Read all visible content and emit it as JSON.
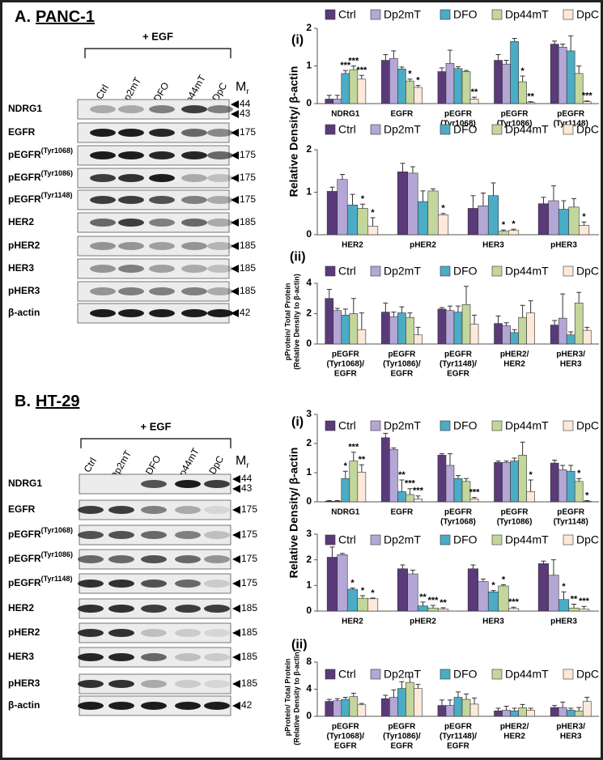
{
  "blots": [
    {
      "panel": "A.",
      "cell_line": "PANC-1",
      "treatment": "+ EGF",
      "lanes": [
        "Ctrl",
        "Dp2mT",
        "DFO",
        "Dp44mT",
        "DpC"
      ],
      "mr": {
        "main": "M",
        "sub": "r"
      },
      "rows": [
        {
          "name": "NDRG1",
          "mr": [
            "44",
            "43"
          ]
        },
        {
          "name": "EGFR",
          "mr": [
            "175"
          ]
        },
        {
          "name": "pEGFR",
          "sup": "(Tyr1068)",
          "mr": [
            "175"
          ]
        },
        {
          "name": "pEGFR",
          "sup": "(Tyr1086)",
          "mr": [
            "175"
          ]
        },
        {
          "name": "pEGFR",
          "sup": "(Tyr1148)",
          "mr": [
            "175"
          ]
        },
        {
          "name": "HER2",
          "mr": [
            "185"
          ]
        },
        {
          "name": "pHER2",
          "mr": [
            "185"
          ]
        },
        {
          "name": "HER3",
          "mr": [
            "185"
          ]
        },
        {
          "name": "pHER3",
          "mr": [
            "185"
          ]
        },
        {
          "name": "β-actin",
          "mr": [
            "42"
          ]
        }
      ]
    },
    {
      "panel": "B.",
      "cell_line": "HT-29",
      "treatment": "+ EGF",
      "lanes": [
        "Ctrl",
        "Dp2mT",
        "DFO",
        "Dp44mT",
        "DpC"
      ],
      "mr": {
        "main": "M",
        "sub": "r"
      },
      "rows": [
        {
          "name": "NDRG1",
          "mr": [
            "44",
            "43"
          ]
        },
        {
          "name": "EGFR",
          "mr": [
            "175"
          ]
        },
        {
          "name": "pEGFR",
          "sup": "(Tyr1068)",
          "mr": [
            "175"
          ]
        },
        {
          "name": "pEGFR",
          "sup": "(Tyr1086)",
          "mr": [
            "175"
          ]
        },
        {
          "name": "pEGFR",
          "sup": "(Tyr1148)",
          "mr": [
            "175"
          ]
        },
        {
          "name": "HER2",
          "mr": [
            "185"
          ]
        },
        {
          "name": "pHER2",
          "mr": [
            "185"
          ]
        },
        {
          "name": "HER3",
          "mr": [
            "185"
          ]
        },
        {
          "name": "pHER3",
          "mr": [
            "185"
          ]
        },
        {
          "name": "β-actin",
          "mr": [
            "42"
          ]
        }
      ]
    }
  ],
  "chart_data": [
    {
      "type": "bar",
      "panel_label": "(i)",
      "ylabel": "Relative Density/ β-actin",
      "categories": [
        [
          "NDRG1"
        ],
        [
          "EGFR"
        ],
        [
          "pEGFR",
          "(Tyr1068)"
        ],
        [
          "pEGFR",
          "(Tyr1086)"
        ],
        [
          "pEGFR",
          "(Tyr1148)"
        ]
      ],
      "ylim": [
        0,
        2
      ],
      "yticks": [
        0,
        1,
        2
      ],
      "series": [
        {
          "name": "Ctrl",
          "color": "#5b3a7a",
          "values": [
            0.12,
            1.15,
            0.85,
            1.15,
            1.58
          ],
          "errors": [
            0.1,
            0.15,
            0.1,
            0.15,
            0.08
          ]
        },
        {
          "name": "Dp2mT",
          "color": "#b4a7d6",
          "values": [
            0.12,
            1.2,
            1.07,
            1.05,
            1.5
          ],
          "errors": [
            0.1,
            0.2,
            0.35,
            0.1,
            0.08
          ]
        },
        {
          "name": "DFO",
          "color": "#4bacc6",
          "values": [
            0.8,
            0.92,
            0.93,
            1.65,
            1.4
          ],
          "errors": [
            0.08,
            0.05,
            0.05,
            0.08,
            0.4
          ],
          "significance": [
            "***",
            null,
            null,
            null,
            null
          ]
        },
        {
          "name": "Dp44mT",
          "color": "#c3d69b",
          "values": [
            0.9,
            0.6,
            0.85,
            0.58,
            0.8
          ],
          "errors": [
            0.1,
            0.05,
            0.03,
            0.15,
            0.2
          ],
          "significance": [
            "***",
            "*",
            null,
            "*",
            null
          ]
        },
        {
          "name": "DpC",
          "color": "#fde9d9",
          "values": [
            0.65,
            0.43,
            0.12,
            0.03,
            0.05
          ],
          "errors": [
            0.1,
            0.05,
            0.05,
            0.02,
            0.02
          ],
          "significance": [
            "***",
            "*",
            "**",
            "**",
            "***"
          ]
        }
      ]
    },
    {
      "type": "bar",
      "categories": [
        [
          "HER2"
        ],
        [
          "pHER2"
        ],
        [
          "HER3"
        ],
        [
          "pHER3"
        ]
      ],
      "ylim": [
        0,
        2
      ],
      "yticks": [
        0,
        1,
        2
      ],
      "series": [
        {
          "name": "Ctrl",
          "color": "#5b3a7a",
          "values": [
            1.02,
            1.48,
            0.62,
            0.73
          ],
          "errors": [
            0.1,
            0.2,
            0.3,
            0.15
          ]
        },
        {
          "name": "Dp2mT",
          "color": "#b4a7d6",
          "values": [
            1.3,
            1.45,
            0.68,
            0.8
          ],
          "errors": [
            0.12,
            0.15,
            0.3,
            0.35
          ]
        },
        {
          "name": "DFO",
          "color": "#4bacc6",
          "values": [
            0.7,
            0.78,
            0.92,
            0.6
          ],
          "errors": [
            0.25,
            0.25,
            0.3,
            0.2
          ]
        },
        {
          "name": "Dp44mT",
          "color": "#c3d69b",
          "values": [
            0.62,
            1.03,
            0.08,
            0.65
          ],
          "errors": [
            0.1,
            0.05,
            0.03,
            0.2
          ],
          "significance": [
            "*",
            null,
            "*",
            null
          ]
        },
        {
          "name": "DpC",
          "color": "#fde9d9",
          "values": [
            0.2,
            0.47,
            0.1,
            0.22
          ],
          "errors": [
            0.2,
            0.03,
            0.03,
            0.08
          ],
          "significance": [
            "*",
            "*",
            "*",
            "*"
          ]
        }
      ]
    },
    {
      "type": "bar",
      "panel_label": "(ii)",
      "ylabel": [
        "pProtein/ Total Protein",
        "(Relative Density to β-actin)"
      ],
      "categories": [
        [
          "pEGFR",
          "(Tyr1068)/",
          "EGFR"
        ],
        [
          "pEGFR",
          "(Tyr1086)/",
          "EGFR"
        ],
        [
          "pEGFR",
          "(Tyr1148)/",
          "EGFR"
        ],
        [
          "pHER2/",
          "HER2"
        ],
        [
          "pHER3/",
          "HER3"
        ]
      ],
      "ylim": [
        0,
        4
      ],
      "yticks": [
        0,
        2,
        4
      ],
      "series": [
        {
          "name": "Ctrl",
          "color": "#5b3a7a",
          "values": [
            3.0,
            2.1,
            2.3,
            1.35,
            1.25
          ],
          "errors": [
            0.6,
            0.6,
            0.1,
            0.5,
            0.3
          ]
        },
        {
          "name": "Dp2mT",
          "color": "#b4a7d6",
          "values": [
            2.2,
            1.8,
            2.2,
            1.2,
            1.7
          ],
          "errors": [
            0.15,
            0.3,
            0.3,
            0.2,
            1.6
          ]
        },
        {
          "name": "DFO",
          "color": "#4bacc6",
          "values": [
            1.9,
            2.05,
            2.1,
            0.75,
            0.6
          ],
          "errors": [
            0.4,
            0.4,
            0.4,
            0.2,
            0.2
          ]
        },
        {
          "name": "Dp44mT",
          "color": "#c3d69b",
          "values": [
            2.0,
            1.75,
            2.6,
            1.75,
            2.7
          ],
          "errors": [
            1.0,
            0.3,
            1.2,
            0.8,
            0.7
          ]
        },
        {
          "name": "DpC",
          "color": "#fde9d9",
          "values": [
            0.95,
            0.6,
            1.3,
            2.05,
            0.9
          ],
          "errors": [
            1.1,
            0.5,
            0.6,
            0.8,
            0.2
          ]
        }
      ]
    },
    {
      "type": "bar",
      "panel_label": "(i)",
      "ylabel": "Relative Density/ β-actin",
      "categories": [
        [
          "NDRG1"
        ],
        [
          "EGFR"
        ],
        [
          "pEGFR",
          "(Tyr1068)"
        ],
        [
          "pEGFR",
          "(Tyr1086)"
        ],
        [
          "pEGFR",
          "(Tyr1148)"
        ]
      ],
      "ylim": [
        0,
        3
      ],
      "yticks": [
        0,
        1,
        2,
        3
      ],
      "series": [
        {
          "name": "Ctrl",
          "color": "#5b3a7a",
          "values": [
            0.02,
            2.2,
            1.6,
            1.35,
            1.33
          ],
          "errors": [
            0.02,
            0.15,
            0.05,
            0.05,
            0.1
          ]
        },
        {
          "name": "Dp2mT",
          "color": "#b4a7d6",
          "values": [
            0.02,
            1.8,
            1.25,
            1.35,
            1.1
          ],
          "errors": [
            0.02,
            0.05,
            0.4,
            0.05,
            0.15
          ]
        },
        {
          "name": "DFO",
          "color": "#4bacc6",
          "values": [
            0.8,
            0.35,
            0.8,
            1.4,
            1.05
          ],
          "errors": [
            0.25,
            0.4,
            0.1,
            0.1,
            0.2
          ],
          "significance": [
            "*",
            "**",
            null,
            null,
            null
          ]
        },
        {
          "name": "Dp44mT",
          "color": "#c3d69b",
          "values": [
            1.4,
            0.25,
            0.7,
            1.6,
            0.7
          ],
          "errors": [
            0.3,
            0.2,
            0.1,
            0.45,
            0.1
          ],
          "significance": [
            "***",
            "***",
            null,
            null,
            "*"
          ]
        },
        {
          "name": "DpC",
          "color": "#fde9d9",
          "values": [
            1.02,
            0.1,
            0.1,
            0.35,
            0.02
          ],
          "errors": [
            0.25,
            0.1,
            0.05,
            0.4,
            0.02
          ],
          "significance": [
            "**",
            "***",
            "***",
            "*",
            "*"
          ]
        }
      ]
    },
    {
      "type": "bar",
      "categories": [
        [
          "HER2"
        ],
        [
          "pHER2"
        ],
        [
          "HER3"
        ],
        [
          "pHER3"
        ]
      ],
      "ylim": [
        0,
        3
      ],
      "yticks": [
        0,
        1,
        2,
        3
      ],
      "series": [
        {
          "name": "Ctrl",
          "color": "#5b3a7a",
          "values": [
            2.1,
            1.65,
            1.65,
            1.85
          ],
          "errors": [
            0.4,
            0.15,
            0.15,
            0.1
          ]
        },
        {
          "name": "Dp2mT",
          "color": "#b4a7d6",
          "values": [
            2.2,
            1.45,
            1.15,
            1.4
          ],
          "errors": [
            0.05,
            0.15,
            0.1,
            0.6
          ]
        },
        {
          "name": "DFO",
          "color": "#4bacc6",
          "values": [
            0.85,
            0.2,
            0.75,
            0.45
          ],
          "errors": [
            0.05,
            0.15,
            0.05,
            0.3
          ],
          "significance": [
            "*",
            "**",
            "*",
            "*"
          ]
        },
        {
          "name": "Dp44mT",
          "color": "#c3d69b",
          "values": [
            0.5,
            0.12,
            0.98,
            0.12
          ],
          "errors": [
            0.1,
            0.1,
            0.05,
            0.15
          ],
          "significance": [
            "*",
            "***",
            "*",
            "**"
          ]
        },
        {
          "name": "DpC",
          "color": "#fde9d9",
          "values": [
            0.48,
            0.08,
            0.1,
            0.08
          ],
          "errors": [
            0.03,
            0.05,
            0.05,
            0.1
          ],
          "significance": [
            "*",
            "**",
            "***",
            "***"
          ]
        }
      ]
    },
    {
      "type": "bar",
      "panel_label": "(ii)",
      "ylabel": [
        "pProtein/ Total Protein",
        "(Relative Density to β-actin)"
      ],
      "categories": [
        [
          "pEGFR",
          "(Tyr1068)/",
          "EGFR"
        ],
        [
          "pEGFR",
          "(Tyr1086)/",
          "EGFR"
        ],
        [
          "pEGFR",
          "(Tyr1148)/",
          "EGFR"
        ],
        [
          "pHER2/",
          "HER2"
        ],
        [
          "pHER3/",
          "HER3"
        ]
      ],
      "ylim": [
        0,
        8
      ],
      "yticks": [
        0,
        4,
        8
      ],
      "series": [
        {
          "name": "Ctrl",
          "color": "#5b3a7a",
          "values": [
            2.2,
            2.6,
            1.6,
            0.8,
            1.3
          ],
          "errors": [
            0.3,
            0.5,
            0.8,
            0.4,
            0.3
          ]
        },
        {
          "name": "Dp2mT",
          "color": "#b4a7d6",
          "values": [
            2.3,
            2.8,
            1.6,
            0.9,
            1.3
          ],
          "errors": [
            0.3,
            1.1,
            0.8,
            0.6,
            0.8
          ]
        },
        {
          "name": "DFO",
          "color": "#4bacc6",
          "values": [
            2.5,
            4.1,
            2.8,
            0.8,
            0.9
          ],
          "errors": [
            0.3,
            1.0,
            0.8,
            0.4,
            0.3
          ]
        },
        {
          "name": "Dp44mT",
          "color": "#c3d69b",
          "values": [
            2.9,
            5.0,
            2.5,
            1.25,
            0.8
          ],
          "errors": [
            0.5,
            0.8,
            0.8,
            0.5,
            0.5
          ]
        },
        {
          "name": "DpC",
          "color": "#fde9d9",
          "values": [
            1.7,
            4.1,
            1.8,
            0.9,
            2.2
          ],
          "errors": [
            0.2,
            0.6,
            0.9,
            0.3,
            0.6
          ]
        }
      ]
    }
  ]
}
